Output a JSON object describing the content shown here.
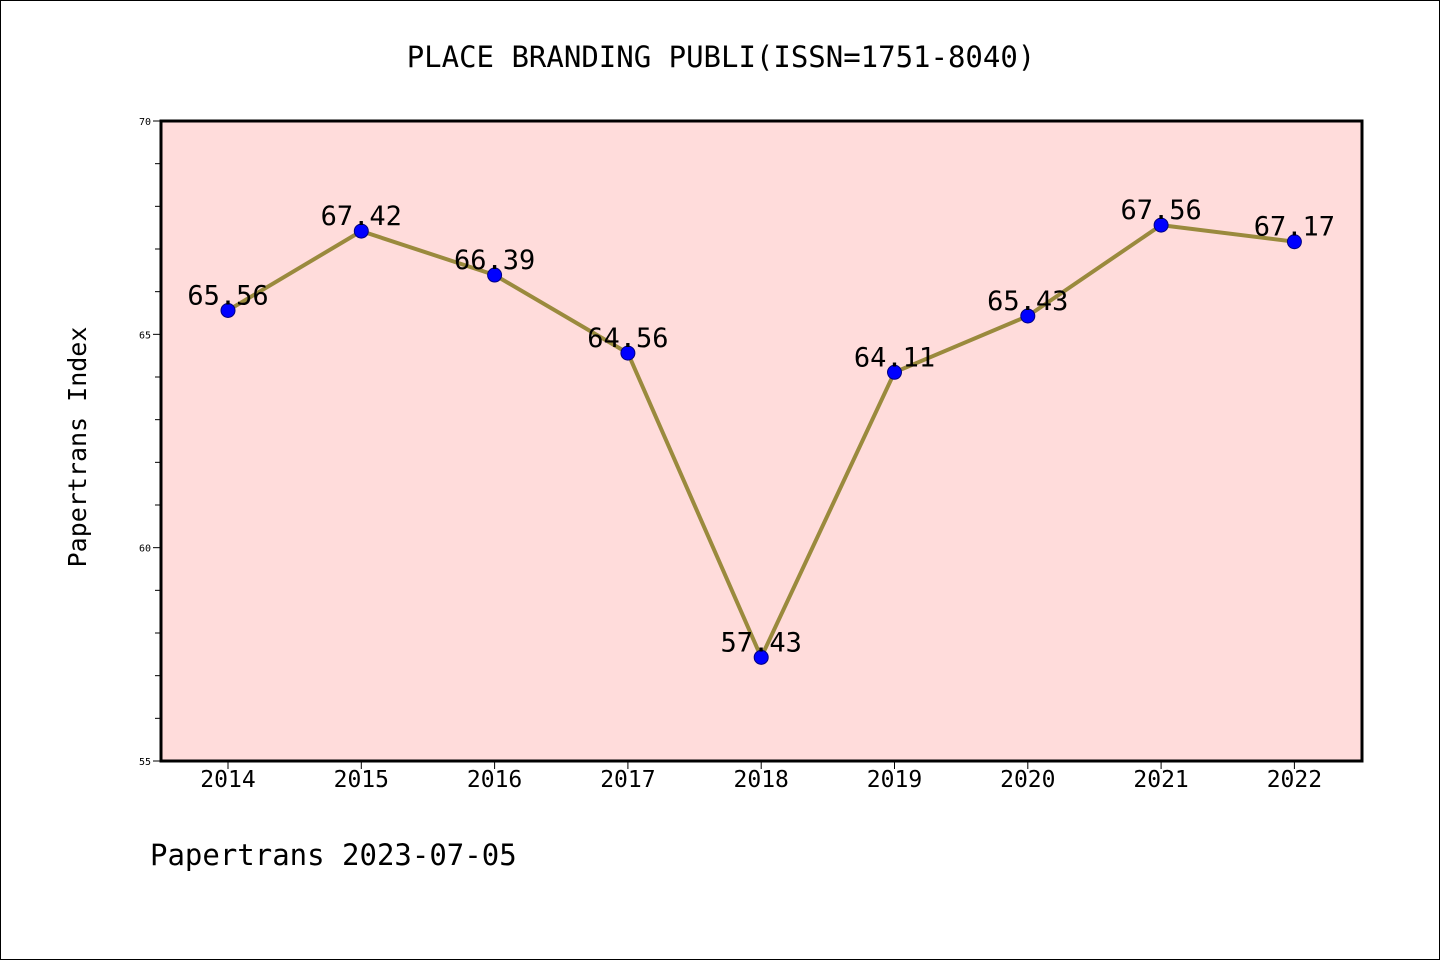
{
  "chart_data": {
    "type": "line",
    "title": "PLACE BRANDING PUBLI(ISSN=1751-8040)",
    "ylabel": "Papertrans Index",
    "xlabel": "",
    "footer": "Papertrans 2023-07-05",
    "categories": [
      "2014",
      "2015",
      "2016",
      "2017",
      "2018",
      "2019",
      "2020",
      "2021",
      "2022"
    ],
    "values": [
      65.56,
      67.42,
      66.39,
      64.56,
      57.43,
      64.11,
      65.43,
      67.56,
      67.17
    ],
    "data_labels": [
      "65.56",
      "67.42",
      "66.39",
      "64.56",
      "57.43",
      "64.11",
      "65.43",
      "67.56",
      "67.17"
    ],
    "ylim": [
      55,
      70
    ],
    "y_ticks": [
      55,
      60,
      65,
      70
    ],
    "y_tick_labels": [
      "55",
      "60",
      "65",
      "70"
    ],
    "y_minor_step": 1,
    "grid": false,
    "legend": "none",
    "colors": {
      "plot_background": "#ffdcdb",
      "line": "#9a8a3d",
      "marker": "#0000ff",
      "axis": "#000000"
    }
  }
}
